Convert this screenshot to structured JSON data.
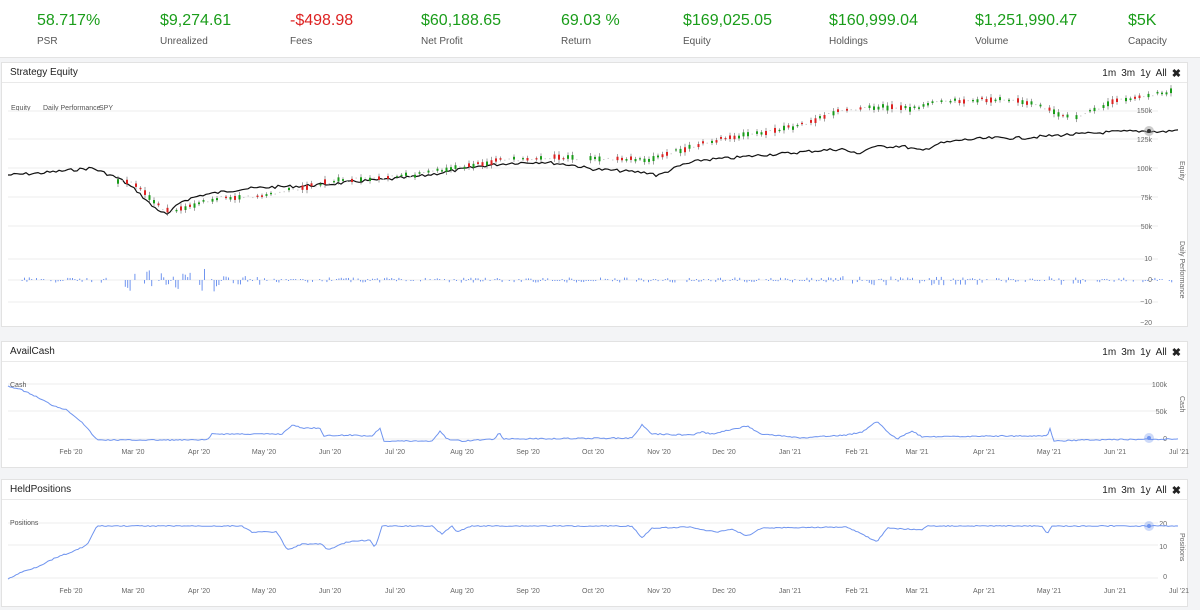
{
  "stats": [
    {
      "value": "58.717%",
      "label": "PSR",
      "color": "#1a9d1a"
    },
    {
      "value": "$9,274.61",
      "label": "Unrealized",
      "color": "#1a9d1a"
    },
    {
      "value": "-$498.98",
      "label": "Fees",
      "color": "#dd2222"
    },
    {
      "value": "$60,188.65",
      "label": "Net Profit",
      "color": "#1a9d1a"
    },
    {
      "value": "69.03 %",
      "label": "Return",
      "color": "#1a9d1a"
    },
    {
      "value": "$169,025.05",
      "label": "Equity",
      "color": "#1a9d1a"
    },
    {
      "value": "$160,999.04",
      "label": "Holdings",
      "color": "#1a9d1a"
    },
    {
      "value": "$1,251,990.47",
      "label": "Volume",
      "color": "#1a9d1a"
    },
    {
      "value": "$5K",
      "label": "Capacity",
      "color": "#1a9d1a"
    }
  ],
  "range_buttons": [
    "1m",
    "3m",
    "1y",
    "All"
  ],
  "close_glyph": "✖",
  "months": [
    "Feb '20",
    "Mar '20",
    "Apr '20",
    "May '20",
    "Jun '20",
    "Jul '20",
    "Aug '20",
    "Sep '20",
    "Oct '20",
    "Nov '20",
    "Dec '20",
    "Jan '21",
    "Feb '21",
    "Mar '21",
    "Apr '21",
    "May '21",
    "Jun '21",
    "Jul '21"
  ],
  "equity_panel": {
    "title": "Strategy Equity",
    "legend": [
      "Equity",
      "Daily Performance",
      "SPY"
    ],
    "equity_axis_title": "Equity",
    "equity_ticks": [
      "150k",
      "125k",
      "100k",
      "75k",
      "50k"
    ],
    "perf_axis_title": "Daily Performance",
    "perf_ticks": [
      "10",
      "0",
      "−10",
      "−20"
    ]
  },
  "cash_panel": {
    "title": "AvailCash",
    "inner_label": "Cash",
    "axis_title": "Cash",
    "ticks": [
      "100k",
      "50k",
      "0"
    ]
  },
  "positions_panel": {
    "title": "HeldPositions",
    "inner_label": "Positions",
    "axis_title": "Positions",
    "ticks": [
      "20",
      "10",
      "0"
    ]
  },
  "colors": {
    "gain": "#1a9d1a",
    "loss": "#dd2222",
    "series": "#6f94ef",
    "spy": "#111111"
  }
}
